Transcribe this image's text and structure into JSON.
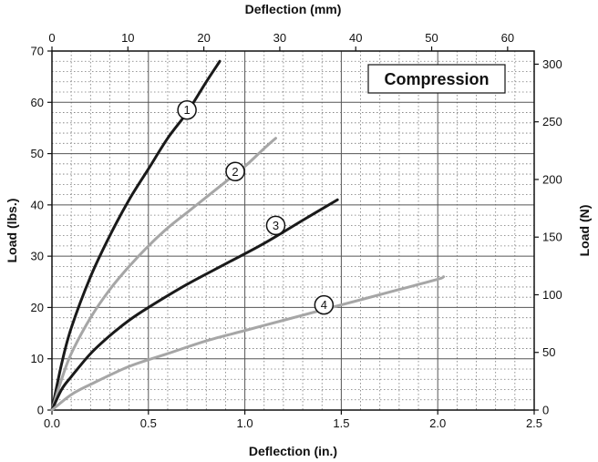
{
  "chart_data": {
    "type": "line",
    "xlabel": "Deflection (in.)",
    "ylabel": "Load (lbs.)",
    "x2label": "Deflection (mm)",
    "y2label": "Load (N)",
    "xlim": [
      0,
      2.5
    ],
    "ylim": [
      0,
      70
    ],
    "x2lim": [
      0,
      63.5
    ],
    "y2lim": [
      0,
      311.4
    ],
    "x_ticks": [
      "0.0",
      "0.5",
      "1.0",
      "1.5",
      "2.0",
      "2.5"
    ],
    "y_ticks": [
      "0",
      "10",
      "20",
      "30",
      "40",
      "50",
      "60",
      "70"
    ],
    "x2_ticks": [
      "0",
      "10",
      "20",
      "30",
      "40",
      "50",
      "60"
    ],
    "y2_ticks": [
      "0",
      "50",
      "100",
      "150",
      "200",
      "250",
      "300"
    ],
    "grid": true,
    "box_label": "Compression",
    "series": [
      {
        "label": "1",
        "color": "#1a1a1a",
        "x": [
          0,
          0.05,
          0.1,
          0.2,
          0.3,
          0.4,
          0.5,
          0.6,
          0.7,
          0.8,
          0.87
        ],
        "y": [
          0,
          9,
          16,
          26,
          34,
          41,
          47,
          53,
          58,
          64,
          68
        ],
        "label_at": [
          0.7,
          58.5
        ]
      },
      {
        "label": "2",
        "color": "#a6a6a6",
        "x": [
          0,
          0.05,
          0.1,
          0.2,
          0.3,
          0.4,
          0.5,
          0.6,
          0.7,
          0.8,
          0.9,
          1.0,
          1.1,
          1.16
        ],
        "y": [
          0,
          6,
          11,
          18,
          23.5,
          28,
          32,
          35.5,
          38.5,
          41.5,
          44.5,
          47.5,
          51,
          53
        ],
        "label_at": [
          0.95,
          46.5
        ]
      },
      {
        "label": "3",
        "color": "#1a1a1a",
        "x": [
          0,
          0.05,
          0.1,
          0.2,
          0.3,
          0.4,
          0.5,
          0.7,
          0.9,
          1.1,
          1.3,
          1.48
        ],
        "y": [
          0,
          4,
          6.5,
          11,
          14.5,
          17.5,
          20,
          24.5,
          28.5,
          32.5,
          37,
          41
        ],
        "label_at": [
          1.16,
          36
        ]
      },
      {
        "label": "4",
        "color": "#a6a6a6",
        "x": [
          0,
          0.1,
          0.2,
          0.4,
          0.6,
          0.8,
          1.0,
          1.2,
          1.4,
          1.6,
          1.8,
          2.0,
          2.03
        ],
        "y": [
          0,
          3,
          5,
          8.5,
          11,
          13.5,
          15.5,
          17.5,
          19.5,
          21.5,
          23.5,
          25.5,
          26
        ],
        "label_at": [
          1.41,
          20.5
        ]
      }
    ]
  }
}
